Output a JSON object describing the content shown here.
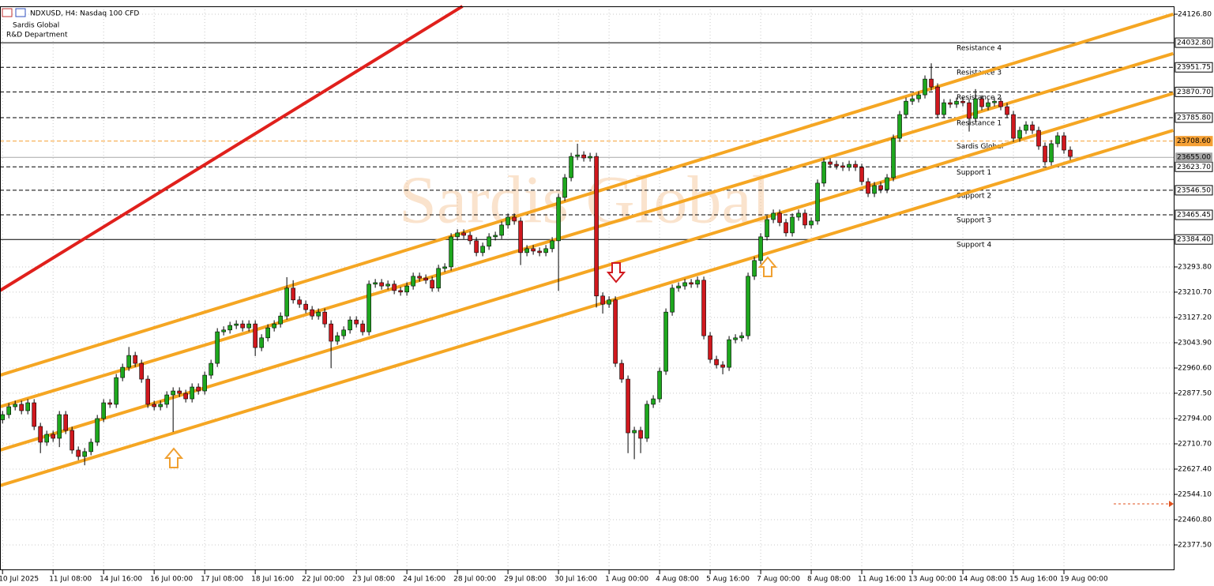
{
  "chart_data": {
    "type": "candlestick",
    "title": "NDXUSD, H4: Nasdaq 100 CFD",
    "annotations": [
      "Sardis Global",
      "R&D Department"
    ],
    "watermark": "Sardis Global",
    "up_color": "#1ea71e",
    "down_color": "#d0181e",
    "grid": true,
    "xlim": [
      -0.4,
      185.5
    ],
    "ylim": [
      22299.4,
      24152.8
    ],
    "yticks": [
      {
        "value": 24126.8,
        "label": "24126.80"
      },
      {
        "value": 23293.8,
        "label": "23293.80"
      },
      {
        "value": 23210.7,
        "label": "23210.70"
      },
      {
        "value": 23127.2,
        "label": "23127.20"
      },
      {
        "value": 23043.9,
        "label": "23043.90"
      },
      {
        "value": 22960.6,
        "label": "22960.60"
      },
      {
        "value": 22877.5,
        "label": "22877.50"
      },
      {
        "value": 22794,
        "label": "22794.00"
      },
      {
        "value": 22710.7,
        "label": "22710.70"
      },
      {
        "value": 22627.4,
        "label": "22627.40"
      },
      {
        "value": 22544.1,
        "label": "22544.10"
      },
      {
        "value": 22460.8,
        "label": "22460.80"
      },
      {
        "value": 22377.5,
        "label": "22377.50"
      }
    ],
    "categories": [
      "10 Jul 2025",
      null,
      null,
      null,
      null,
      null,
      null,
      null,
      "11 Jul 08:00",
      null,
      null,
      null,
      null,
      null,
      null,
      null,
      "14 Jul 16:00",
      null,
      null,
      null,
      null,
      null,
      null,
      null,
      "16 Jul 00:00",
      null,
      null,
      null,
      null,
      null,
      null,
      null,
      "17 Jul 08:00",
      null,
      null,
      null,
      null,
      null,
      null,
      null,
      "18 Jul 16:00",
      null,
      null,
      null,
      null,
      null,
      null,
      null,
      "22 Jul 00:00",
      null,
      null,
      null,
      null,
      null,
      null,
      null,
      "23 Jul 08:00",
      null,
      null,
      null,
      null,
      null,
      null,
      null,
      "24 Jul 16:00",
      null,
      null,
      null,
      null,
      null,
      null,
      null,
      "28 Jul 00:00",
      null,
      null,
      null,
      null,
      null,
      null,
      null,
      "29 Jul 08:00",
      null,
      null,
      null,
      null,
      null,
      null,
      null,
      "30 Jul 16:00",
      null,
      null,
      null,
      null,
      null,
      null,
      null,
      "1 Aug 00:00",
      null,
      null,
      null,
      null,
      null,
      null,
      null,
      "4 Aug 08:00",
      null,
      null,
      null,
      null,
      null,
      null,
      null,
      "5 Aug 16:00",
      null,
      null,
      null,
      null,
      null,
      null,
      null,
      "7 Aug 00:00",
      null,
      null,
      null,
      null,
      null,
      null,
      null,
      "8 Aug 08:00",
      null,
      null,
      null,
      null,
      null,
      null,
      null,
      "11 Aug 16:00",
      null,
      null,
      null,
      null,
      null,
      null,
      null,
      "13 Aug 00:00",
      null,
      null,
      null,
      null,
      null,
      null,
      null,
      "14 Aug 08:00",
      null,
      null,
      null,
      null,
      null,
      null,
      null,
      "15 Aug 16:00",
      null,
      null,
      null,
      null,
      null,
      null,
      null,
      "19 Aug 00:00",
      null
    ],
    "open": [
      22790,
      22807,
      22833,
      22841,
      22820,
      22846,
      22768,
      22716,
      22742,
      22729,
      22807,
      22755,
      22690,
      22669,
      22685,
      22716,
      22794,
      22846,
      22841,
      22929,
      22963,
      23002,
      22976,
      22924,
      22841,
      22833,
      22841,
      22872,
      22885,
      22877,
      22859,
      22898,
      22885,
      22937,
      22976,
      23080,
      23086,
      23101,
      23106,
      23093,
      23106,
      23028,
      23060,
      23093,
      23106,
      23132,
      23224,
      23185,
      23171,
      23153,
      23132,
      23145,
      23106,
      23049,
      23067,
      23086,
      23119,
      23106,
      23080,
      23237,
      23242,
      23231,
      23237,
      23216,
      23211,
      23231,
      23263,
      23257,
      23250,
      23224,
      23289,
      23294,
      23393,
      23406,
      23398,
      23380,
      23341,
      23362,
      23393,
      23398,
      23432,
      23458,
      23445,
      23341,
      23354,
      23346,
      23341,
      23354,
      23380,
      23523,
      23588,
      23658,
      23663,
      23653,
      23658,
      23198,
      23171,
      23185,
      22976,
      22924,
      22747,
      22755,
      22729,
      22841,
      22859,
      22950,
      23145,
      23224,
      23231,
      23242,
      23237,
      23250,
      23067,
      22989,
      22971,
      22963,
      23054,
      23060,
      23067,
      23263,
      23315,
      23393,
      23450,
      23471,
      23440,
      23406,
      23458,
      23471,
      23432,
      23445,
      23570,
      23640,
      23632,
      23627,
      23622,
      23632,
      23622,
      23575,
      23536,
      23562,
      23549,
      23588,
      23718,
      23796,
      23840,
      23848,
      23861,
      23913,
      23887,
      23796,
      23835,
      23830,
      23840,
      23835,
      23783,
      23848,
      23822,
      23835,
      23840,
      23822,
      23796,
      23718,
      23744,
      23762,
      23744,
      23692,
      23640,
      23700,
      23726,
      23679
    ],
    "high": [
      22819,
      22845,
      22853,
      22853,
      22858,
      22858,
      22780,
      22754,
      22754,
      22819,
      22819,
      22767,
      22702,
      22697,
      22728,
      22806,
      22858,
      22858,
      22941,
      22975,
      23030,
      23014,
      22988,
      22936,
      22853,
      22853,
      22884,
      22897,
      22897,
      22889,
      22910,
      22910,
      22949,
      22988,
      23092,
      23098,
      23113,
      23118,
      23118,
      23118,
      23118,
      23072,
      23105,
      23118,
      23144,
      23260,
      23250,
      23197,
      23183,
      23165,
      23157,
      23157,
      23118,
      23079,
      23098,
      23131,
      23131,
      23118,
      23249,
      23254,
      23254,
      23249,
      23249,
      23228,
      23243,
      23275,
      23275,
      23269,
      23262,
      23301,
      23306,
      23405,
      23418,
      23418,
      23410,
      23392,
      23374,
      23405,
      23410,
      23444,
      23470,
      23470,
      23457,
      23366,
      23366,
      23358,
      23366,
      23392,
      23535,
      23600,
      23670,
      23700,
      23675,
      23670,
      23670,
      23210,
      23197,
      23197,
      22988,
      22936,
      22767,
      22767,
      22853,
      22871,
      22962,
      23157,
      23236,
      23243,
      23254,
      23254,
      23262,
      23262,
      23079,
      23001,
      22983,
      23066,
      23072,
      23079,
      23275,
      23327,
      23405,
      23462,
      23483,
      23483,
      23452,
      23470,
      23483,
      23483,
      23457,
      23582,
      23652,
      23652,
      23644,
      23639,
      23644,
      23644,
      23634,
      23587,
      23574,
      23574,
      23600,
      23730,
      23808,
      23852,
      23860,
      23873,
      23925,
      23965,
      23899,
      23847,
      23847,
      23852,
      23852,
      23847,
      23880,
      23860,
      23847,
      23852,
      23852,
      23834,
      23808,
      23756,
      23774,
      23774,
      23756,
      23704,
      23712,
      23738,
      23738,
      23691
    ],
    "low": [
      22778,
      22795,
      22821,
      22808,
      22808,
      22756,
      22680,
      22704,
      22717,
      22700,
      22743,
      22678,
      22657,
      22640,
      22673,
      22704,
      22782,
      22829,
      22829,
      22917,
      22951,
      22964,
      22912,
      22829,
      22821,
      22821,
      22829,
      22750,
      22865,
      22847,
      22847,
      22873,
      22873,
      22925,
      22964,
      23068,
      23074,
      23089,
      23081,
      23081,
      23000,
      23016,
      23048,
      23081,
      23094,
      23120,
      23173,
      23159,
      23141,
      23120,
      23120,
      23094,
      22960,
      23037,
      23055,
      23074,
      23094,
      23068,
      23068,
      23225,
      23219,
      23219,
      23204,
      23199,
      23199,
      23219,
      23245,
      23238,
      23212,
      23212,
      23277,
      23282,
      23381,
      23386,
      23368,
      23329,
      23329,
      23350,
      23381,
      23386,
      23420,
      23433,
      23300,
      23329,
      23334,
      23329,
      23329,
      23342,
      23215,
      23511,
      23576,
      23646,
      23641,
      23641,
      23160,
      23140,
      23159,
      22964,
      22912,
      22680,
      22660,
      22680,
      22717,
      22829,
      22847,
      22938,
      23133,
      23212,
      23219,
      23225,
      23225,
      23055,
      22977,
      22959,
      22940,
      22951,
      23042,
      23048,
      23055,
      23251,
      23303,
      23381,
      23438,
      23428,
      23394,
      23394,
      23446,
      23420,
      23420,
      23433,
      23558,
      23620,
      23615,
      23610,
      23610,
      23610,
      23563,
      23524,
      23524,
      23537,
      23537,
      23576,
      23706,
      23784,
      23828,
      23836,
      23849,
      23875,
      23784,
      23784,
      23818,
      23818,
      23823,
      23740,
      23771,
      23810,
      23810,
      23823,
      23810,
      23784,
      23706,
      23706,
      23732,
      23732,
      23680,
      23628,
      23628,
      23688,
      23667,
      23646
    ],
    "close": [
      22807,
      22833,
      22841,
      22820,
      22846,
      22768,
      22716,
      22742,
      22729,
      22807,
      22755,
      22690,
      22669,
      22685,
      22716,
      22794,
      22846,
      22841,
      22929,
      22963,
      23002,
      22976,
      22924,
      22841,
      22833,
      22841,
      22872,
      22885,
      22877,
      22859,
      22898,
      22885,
      22937,
      22976,
      23080,
      23086,
      23101,
      23106,
      23093,
      23106,
      23028,
      23060,
      23093,
      23106,
      23132,
      23224,
      23185,
      23171,
      23153,
      23132,
      23145,
      23106,
      23049,
      23067,
      23086,
      23119,
      23106,
      23080,
      23237,
      23242,
      23231,
      23237,
      23216,
      23211,
      23231,
      23263,
      23257,
      23250,
      23224,
      23289,
      23294,
      23393,
      23406,
      23398,
      23380,
      23341,
      23362,
      23393,
      23398,
      23432,
      23458,
      23445,
      23341,
      23354,
      23346,
      23341,
      23354,
      23380,
      23523,
      23588,
      23658,
      23663,
      23653,
      23658,
      23198,
      23171,
      23185,
      22976,
      22924,
      22747,
      22755,
      22729,
      22841,
      22859,
      22950,
      23145,
      23224,
      23231,
      23242,
      23237,
      23250,
      23067,
      22989,
      22971,
      22963,
      23054,
      23060,
      23067,
      23263,
      23315,
      23393,
      23450,
      23471,
      23440,
      23406,
      23458,
      23471,
      23432,
      23445,
      23570,
      23640,
      23632,
      23627,
      23622,
      23632,
      23622,
      23575,
      23536,
      23562,
      23549,
      23588,
      23718,
      23796,
      23840,
      23848,
      23861,
      23913,
      23887,
      23796,
      23835,
      23830,
      23840,
      23835,
      23783,
      23848,
      23822,
      23835,
      23840,
      23822,
      23796,
      23718,
      23744,
      23762,
      23744,
      23692,
      23640,
      23700,
      23726,
      23679,
      23658
    ],
    "levels": [
      {
        "name": "Resistance 4",
        "value": 24032.8,
        "label": "24032.80",
        "style": "solid",
        "color": "#000000"
      },
      {
        "name": "Resistance 3",
        "value": 23951.75,
        "label": "23951.75",
        "style": "dashed",
        "color": "#000000"
      },
      {
        "name": "Resistance 2",
        "value": 23870.7,
        "label": "23870.70",
        "style": "dashed",
        "color": "#000000"
      },
      {
        "name": "Resistance 1",
        "value": 23785.8,
        "label": "23785.80",
        "style": "dashed",
        "color": "#000000"
      },
      {
        "name": "Sardis Global",
        "value": 23708.6,
        "label": "23708.60",
        "style": "dashed",
        "color": "#f5a035"
      },
      {
        "name": "Support 1",
        "value": 23623.7,
        "label": "23623.70",
        "style": "dashed",
        "color": "#000000"
      },
      {
        "name": "Support 2",
        "value": 23546.5,
        "label": "23546.50",
        "style": "dashed",
        "color": "#000000"
      },
      {
        "name": "Support 3",
        "value": 23465.45,
        "label": "23465.45",
        "style": "dashed",
        "color": "#000000"
      },
      {
        "name": "Support 4",
        "value": 23384.4,
        "label": "23384.40",
        "style": "solid",
        "color": "#000000"
      }
    ],
    "current_price": {
      "value": 23655,
      "label": "23655.00",
      "color": "#a8a8a8"
    },
    "trendlines": [
      {
        "color": "#f5a623",
        "x": [
          -0.4,
          185.3
        ],
        "y": [
          22937,
          24127
        ]
      },
      {
        "color": "#f5a623",
        "x": [
          -0.4,
          185.3
        ],
        "y": [
          22833,
          23997
        ]
      },
      {
        "color": "#f5a623",
        "x": [
          -0.4,
          185.3
        ],
        "y": [
          22690,
          23866
        ]
      },
      {
        "color": "#f5a623",
        "x": [
          -0.4,
          185.3
        ],
        "y": [
          22573,
          23744
        ]
      },
      {
        "color": "#e0201c",
        "x": [
          -0.4,
          72.8
        ],
        "y": [
          23216,
          24153
        ]
      }
    ]
  }
}
